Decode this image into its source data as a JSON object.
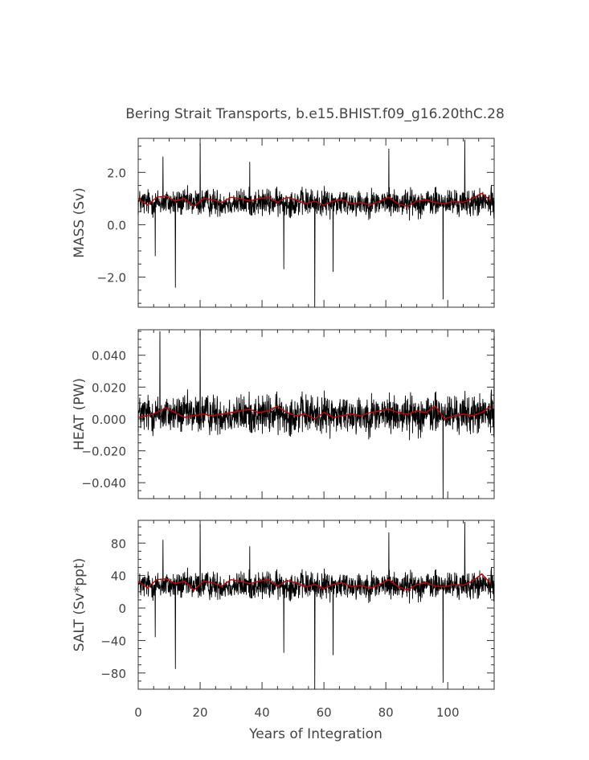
{
  "chart_data": {
    "type": "line",
    "title": "Bering Strait Transports, b.e15.BHIST.f09_g16.20thC.28",
    "xlabel": "Years of Integration",
    "xlim": [
      0,
      115
    ],
    "xticks": [
      0,
      20,
      40,
      60,
      80,
      100
    ],
    "grid": false,
    "legend": "none",
    "colors": {
      "monthly": "#000000",
      "annual": "#cc0000",
      "axis": "#333333"
    },
    "panels": [
      {
        "ylabel": "MASS (Sv)",
        "ylim": [
          -3.15,
          3.3
        ],
        "yticks": [
          2.0,
          0.0,
          -2.0
        ],
        "ytick_labels": [
          "2.0",
          "0.0",
          "−2.0"
        ],
        "monthly_center": 0.85,
        "monthly_amp": 0.55,
        "spikes": [
          [
            5.5,
            -1.2
          ],
          [
            8,
            2.6
          ],
          [
            12,
            -2.4
          ],
          [
            20,
            3.1
          ],
          [
            36,
            2.4
          ],
          [
            47,
            -1.7
          ],
          [
            57,
            -3.15
          ],
          [
            63,
            -1.8
          ],
          [
            81,
            2.9
          ],
          [
            98.5,
            -2.85
          ],
          [
            105.5,
            3.25
          ]
        ],
        "annual_x": [
          0,
          3,
          6,
          9,
          12,
          15,
          18,
          21,
          24,
          27,
          30,
          33,
          36,
          39,
          42,
          45,
          48,
          51,
          54,
          57,
          60,
          63,
          66,
          69,
          72,
          75,
          78,
          81,
          84,
          87,
          90,
          93,
          96,
          99,
          102,
          105,
          108,
          111,
          114
        ],
        "annual_y": [
          1.0,
          0.75,
          1.05,
          1.1,
          0.9,
          1.0,
          0.7,
          1.0,
          0.95,
          0.85,
          1.05,
          1.0,
          0.9,
          1.0,
          1.05,
          0.85,
          1.05,
          0.95,
          0.8,
          0.9,
          0.75,
          0.9,
          0.95,
          0.8,
          0.85,
          0.75,
          0.9,
          1.05,
          0.8,
          0.7,
          0.9,
          0.95,
          0.85,
          0.8,
          0.9,
          0.85,
          1.0,
          1.2,
          0.9
        ]
      },
      {
        "ylabel": "HEAT (PW)",
        "ylim": [
          -0.05,
          0.056
        ],
        "yticks": [
          0.04,
          0.02,
          0.0,
          -0.02,
          -0.04
        ],
        "ytick_labels": [
          "0.040",
          "0.020",
          "0.000",
          "−0.020",
          "−0.040"
        ],
        "monthly_center": 0.003,
        "monthly_amp": 0.013,
        "spikes": [
          [
            7,
            0.055
          ],
          [
            20,
            0.055
          ],
          [
            98.5,
            -0.05
          ],
          [
            115,
            0.052
          ]
        ],
        "annual_x": [
          0,
          3,
          6,
          9,
          12,
          15,
          18,
          21,
          24,
          27,
          30,
          33,
          36,
          39,
          42,
          45,
          48,
          51,
          54,
          57,
          60,
          63,
          66,
          69,
          72,
          75,
          78,
          81,
          84,
          87,
          90,
          93,
          96,
          99,
          102,
          105,
          108,
          111,
          114
        ],
        "annual_y": [
          0.001,
          0.002,
          0.004,
          0.007,
          0.004,
          0.001,
          0.002,
          0.003,
          0.002,
          0.003,
          0.004,
          0.005,
          0.006,
          0.004,
          0.005,
          0.008,
          0.004,
          0.002,
          0.003,
          0.0,
          0.004,
          0.001,
          0.002,
          0.003,
          0.002,
          0.004,
          0.005,
          0.006,
          0.004,
          0.003,
          0.005,
          0.004,
          0.008,
          0.0,
          0.002,
          0.003,
          0.002,
          0.004,
          0.008
        ]
      },
      {
        "ylabel": "SALT (Sv*ppt)",
        "ylim": [
          -100,
          108
        ],
        "yticks": [
          80,
          40,
          0,
          -40,
          -80
        ],
        "ytick_labels": [
          "80",
          "40",
          "0",
          "−40",
          "−80"
        ],
        "monthly_center": 28,
        "monthly_amp": 18,
        "spikes": [
          [
            5.5,
            -36
          ],
          [
            8,
            84
          ],
          [
            12,
            -75
          ],
          [
            20,
            103
          ],
          [
            36,
            76
          ],
          [
            47,
            -55
          ],
          [
            57,
            -100
          ],
          [
            63,
            -58
          ],
          [
            81,
            93
          ],
          [
            98.5,
            -92
          ],
          [
            105.5,
            106
          ]
        ],
        "annual_x": [
          0,
          3,
          6,
          9,
          12,
          15,
          18,
          21,
          24,
          27,
          30,
          33,
          36,
          39,
          42,
          45,
          48,
          51,
          54,
          57,
          60,
          63,
          66,
          69,
          72,
          75,
          78,
          81,
          84,
          87,
          90,
          93,
          96,
          99,
          102,
          105,
          108,
          111,
          114
        ],
        "annual_y": [
          33,
          25,
          35,
          36,
          30,
          33,
          22,
          33,
          31,
          27,
          35,
          33,
          30,
          33,
          35,
          27,
          34,
          31,
          26,
          29,
          24,
          29,
          31,
          26,
          28,
          24,
          29,
          35,
          26,
          22,
          29,
          31,
          27,
          26,
          29,
          28,
          33,
          42,
          30
        ]
      }
    ]
  }
}
